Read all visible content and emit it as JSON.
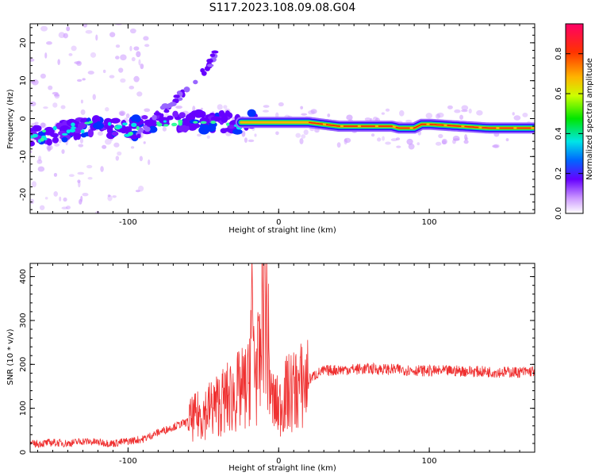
{
  "title": "S117.2023.108.09.08.G04",
  "chart_data": [
    {
      "type": "heatmap",
      "xlabel": "Height of straight line (km)",
      "ylabel": "Frequency (Hz)",
      "xlim": [
        -165,
        170
      ],
      "ylim": [
        -25,
        25
      ],
      "x_ticks": [
        "-100",
        "0",
        "100"
      ],
      "x_tick_values": [
        -100,
        0,
        100
      ],
      "y_ticks": [
        "-20",
        "-10",
        "0",
        "10",
        "20"
      ],
      "y_tick_values": [
        -20,
        -10,
        0,
        10,
        20
      ],
      "colorbar": {
        "label": "Normalized spectral amplitude",
        "range": [
          0,
          0.95
        ],
        "ticks": [
          "0.0",
          "0.2",
          "0.4",
          "0.6",
          "0.8"
        ],
        "tick_values": [
          0,
          0.2,
          0.4,
          0.6,
          0.8
        ]
      },
      "main_track": {
        "x": [
          -165,
          -140,
          -120,
          -100,
          -80,
          -60,
          -40,
          -20,
          0,
          20,
          40,
          60,
          75,
          80,
          90,
          95,
          100,
          120,
          140,
          170
        ],
        "y": [
          -5,
          -3,
          -2,
          -3,
          -1,
          -1,
          -1,
          -1,
          -1,
          -1,
          -2,
          -2,
          -2,
          -2.5,
          -2.5,
          -1.5,
          -1.5,
          -2,
          -2.5,
          -2.5
        ]
      },
      "diagonal_branch": {
        "x": [
          -95,
          -80,
          -65,
          -50,
          -40
        ],
        "y": [
          -5,
          1,
          6,
          12,
          18
        ]
      }
    },
    {
      "type": "line",
      "xlabel": "Height of straight line (km)",
      "ylabel": "SNR (10 * v/v)",
      "xlim": [
        -165,
        170
      ],
      "ylim": [
        0,
        430
      ],
      "x_ticks": [
        "-100",
        "0",
        "100"
      ],
      "x_tick_values": [
        -100,
        0,
        100
      ],
      "y_ticks": [
        "0",
        "100",
        "200",
        "300",
        "400"
      ],
      "y_tick_values": [
        0,
        100,
        200,
        300,
        400
      ],
      "color": "#ef3030",
      "series": [
        {
          "x": [
            -165,
            -150,
            -140,
            -130,
            -110,
            -100,
            -90,
            -80,
            -60,
            -50,
            -40,
            -30,
            -25,
            -20,
            -18,
            -15,
            -12,
            -10,
            -5,
            0,
            5,
            10,
            15,
            20,
            25,
            30,
            40,
            60,
            80,
            100,
            120,
            140,
            160,
            170
          ],
          "values": [
            18,
            22,
            20,
            25,
            20,
            25,
            30,
            45,
            70,
            90,
            110,
            130,
            140,
            150,
            300,
            180,
            200,
            430,
            120,
            100,
            130,
            140,
            150,
            165,
            178,
            185,
            188,
            190,
            188,
            185,
            185,
            183,
            182,
            185
          ]
        }
      ]
    }
  ]
}
